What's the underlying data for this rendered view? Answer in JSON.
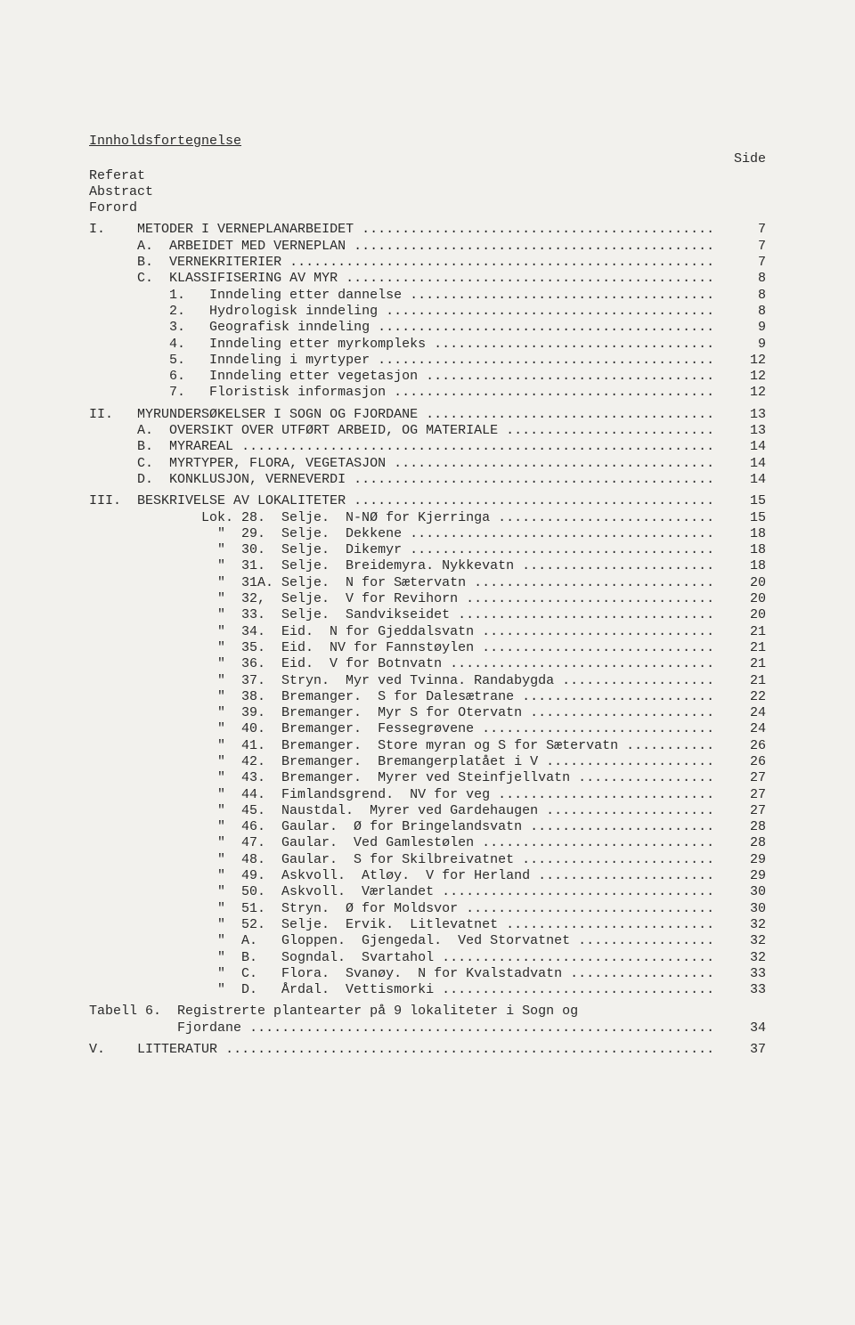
{
  "title": "Innholdsfortegnelse",
  "side_label": "Side",
  "preamble": [
    "Referat",
    "Abstract",
    "Forord"
  ],
  "sections": {
    "I": {
      "roman": "I.",
      "title": "METODER I VERNEPLANARBEIDET",
      "page": "7",
      "subs": [
        {
          "marker": "A.",
          "title": "ARBEIDET MED VERNEPLAN",
          "page": "7"
        },
        {
          "marker": "B.",
          "title": "VERNEKRITERIER",
          "page": "7"
        },
        {
          "marker": "C.",
          "title": "KLASSIFISERING AV MYR",
          "page": "8"
        }
      ],
      "csubs": [
        {
          "marker": "1.",
          "title": "Inndeling etter dannelse",
          "page": "8"
        },
        {
          "marker": "2.",
          "title": "Hydrologisk inndeling",
          "page": "8"
        },
        {
          "marker": "3.",
          "title": "Geografisk inndeling",
          "page": "9"
        },
        {
          "marker": "4.",
          "title": "Inndeling etter myrkompleks",
          "page": "9"
        },
        {
          "marker": "5.",
          "title": "Inndeling i myrtyper",
          "page": "12"
        },
        {
          "marker": "6.",
          "title": "Inndeling etter vegetasjon",
          "page": "12"
        },
        {
          "marker": "7.",
          "title": "Floristisk informasjon",
          "page": "12"
        }
      ]
    },
    "II": {
      "roman": "II.",
      "title": "MYRUNDERSØKELSER I SOGN OG FJORDANE",
      "page": "13",
      "subs": [
        {
          "marker": "A.",
          "title": "OVERSIKT OVER UTFØRT ARBEID, OG MATERIALE",
          "page": "13"
        },
        {
          "marker": "B.",
          "title": "MYRAREAL",
          "page": "14"
        },
        {
          "marker": "C.",
          "title": "MYRTYPER, FLORA, VEGETASJON",
          "page": "14"
        },
        {
          "marker": "D.",
          "title": "KONKLUSJON, VERNEVERDI",
          "page": "14"
        }
      ]
    },
    "III": {
      "roman": "III.",
      "title": "BESKRIVELSE AV LOKALITETER",
      "page": "15",
      "loks": [
        {
          "num": "Lok. 28.",
          "text": "Selje.  N-NØ for Kjerringa",
          "page": "15"
        },
        {
          "num": "  \"  29.",
          "text": "Selje.  Dekkene",
          "page": "18"
        },
        {
          "num": "  \"  30.",
          "text": "Selje.  Dikemyr",
          "page": "18"
        },
        {
          "num": "  \"  31.",
          "text": "Selje.  Breidemyra. Nykkevatn",
          "page": "18"
        },
        {
          "num": "  \"  31A.",
          "text": "Selje.  N for Sætervatn",
          "page": "20"
        },
        {
          "num": "  \"  32,",
          "text": "Selje.  V for Revihorn",
          "page": "20"
        },
        {
          "num": "  \"  33.",
          "text": "Selje.  Sandvikseidet",
          "page": "20"
        },
        {
          "num": "  \"  34.",
          "text": "Eid.  N for Gjeddalsvatn",
          "page": "21"
        },
        {
          "num": "  \"  35.",
          "text": "Eid.  NV for Fannstøylen",
          "page": "21"
        },
        {
          "num": "  \"  36.",
          "text": "Eid.  V for Botnvatn",
          "page": "21"
        },
        {
          "num": "  \"  37.",
          "text": "Stryn.  Myr ved Tvinna. Randabygda",
          "page": "21"
        },
        {
          "num": "  \"  38.",
          "text": "Bremanger.  S for Dalesætrane",
          "page": "22"
        },
        {
          "num": "  \"  39.",
          "text": "Bremanger.  Myr S for Otervatn",
          "page": "24"
        },
        {
          "num": "  \"  40.",
          "text": "Bremanger.  Fessegrøvene",
          "page": "24"
        },
        {
          "num": "  \"  41.",
          "text": "Bremanger.  Store myran og S for Sætervatn",
          "page": "26"
        },
        {
          "num": "  \"  42.",
          "text": "Bremanger.  Bremangerplatået i V",
          "page": "26"
        },
        {
          "num": "  \"  43.",
          "text": "Bremanger.  Myrer ved Steinfjellvatn",
          "page": "27"
        },
        {
          "num": "  \"  44.",
          "text": "Fimlandsgrend.  NV for veg",
          "page": "27"
        },
        {
          "num": "  \"  45.",
          "text": "Naustdal.  Myrer ved Gardehaugen",
          "page": "27"
        },
        {
          "num": "  \"  46.",
          "text": "Gaular.  Ø for Bringelandsvatn",
          "page": "28"
        },
        {
          "num": "  \"  47.",
          "text": "Gaular.  Ved Gamlestølen",
          "page": "28"
        },
        {
          "num": "  \"  48.",
          "text": "Gaular.  S for Skilbreivatnet",
          "page": "29"
        },
        {
          "num": "  \"  49.",
          "text": "Askvoll.  Atløy.  V for Herland",
          "page": "29"
        },
        {
          "num": "  \"  50.",
          "text": "Askvoll.  Værlandet",
          "page": "30"
        },
        {
          "num": "  \"  51.",
          "text": "Stryn.  Ø for Moldsvor",
          "page": "30"
        },
        {
          "num": "  \"  52.",
          "text": "Selje.  Ervik.  Litlevatnet",
          "page": "32"
        },
        {
          "num": "  \"  A. ",
          "text": "Gloppen.  Gjengedal.  Ved Storvatnet",
          "page": "32"
        },
        {
          "num": "  \"  B. ",
          "text": "Sogndal.  Svartahol",
          "page": "32"
        },
        {
          "num": "  \"  C. ",
          "text": "Flora.  Svanøy.  N for Kvalstadvatn",
          "page": "33"
        },
        {
          "num": "  \"  D. ",
          "text": "Årdal.  Vettismorki",
          "page": "33"
        }
      ]
    },
    "tabell": {
      "label": "Tabell 6.",
      "title_line1": "Registrerte plantearter på 9 lokaliteter i Sogn og",
      "title_line2": "Fjordane",
      "page": "34"
    },
    "V": {
      "roman": "V.",
      "title": "LITTERATUR",
      "page": "37"
    }
  },
  "dots": "................................................................................"
}
